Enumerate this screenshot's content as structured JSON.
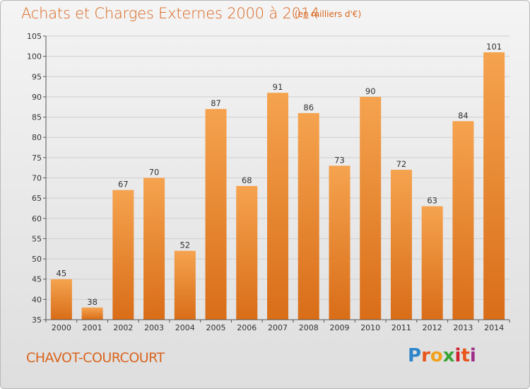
{
  "header": {
    "title": "Achats et Charges Externes 2000 à 2014",
    "subtitle": "(en milliers d'€)"
  },
  "footer": {
    "commune": "CHAVOT-COURCOURT",
    "logo_letters": [
      "P",
      "r",
      "o",
      "x",
      "i",
      "t",
      "i"
    ]
  },
  "colors": {
    "accent": "#d9651e",
    "bar_top": "#f5a34f",
    "bar_bottom": "#d96d18",
    "grid": "#cfcfcf"
  },
  "chart_data": {
    "type": "bar",
    "title": "Achats et Charges Externes 2000 à 2014",
    "subtitle": "(en milliers d'€)",
    "categories": [
      "2000",
      "2001",
      "2002",
      "2003",
      "2004",
      "2005",
      "2006",
      "2007",
      "2008",
      "2009",
      "2010",
      "2011",
      "2012",
      "2013",
      "2014"
    ],
    "values": [
      45,
      38,
      67,
      70,
      52,
      87,
      68,
      91,
      86,
      73,
      90,
      72,
      63,
      84,
      101
    ],
    "ylim": [
      35,
      105
    ],
    "yticks": [
      35,
      40,
      45,
      50,
      55,
      60,
      65,
      70,
      75,
      80,
      85,
      90,
      95,
      100,
      105
    ],
    "grid": true,
    "legend": "none"
  }
}
